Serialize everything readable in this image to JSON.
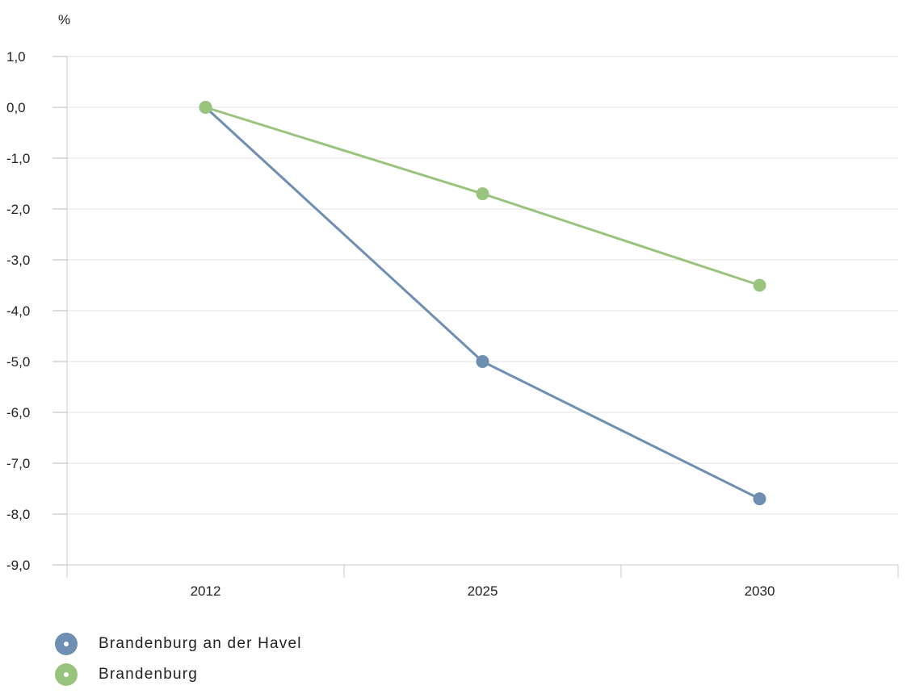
{
  "chart_data": {
    "type": "line",
    "unit_label": "%",
    "categories": [
      "2012",
      "2025",
      "2030"
    ],
    "yticks": [
      "1,0",
      "0,0",
      "-1,0",
      "-2,0",
      "-3,0",
      "-4,0",
      "-5,0",
      "-6,0",
      "-7,0",
      "-8,0",
      "-9,0"
    ],
    "ylim": [
      -9,
      1
    ],
    "grid": true,
    "legend_position": "bottom-left",
    "series": [
      {
        "name": "Brandenburg an der Havel",
        "color": "#6f8fb2",
        "values": [
          0,
          -5.0,
          -7.7
        ]
      },
      {
        "name": "Brandenburg",
        "color": "#99c47e",
        "values": [
          0,
          -1.7,
          -3.5
        ]
      }
    ]
  }
}
